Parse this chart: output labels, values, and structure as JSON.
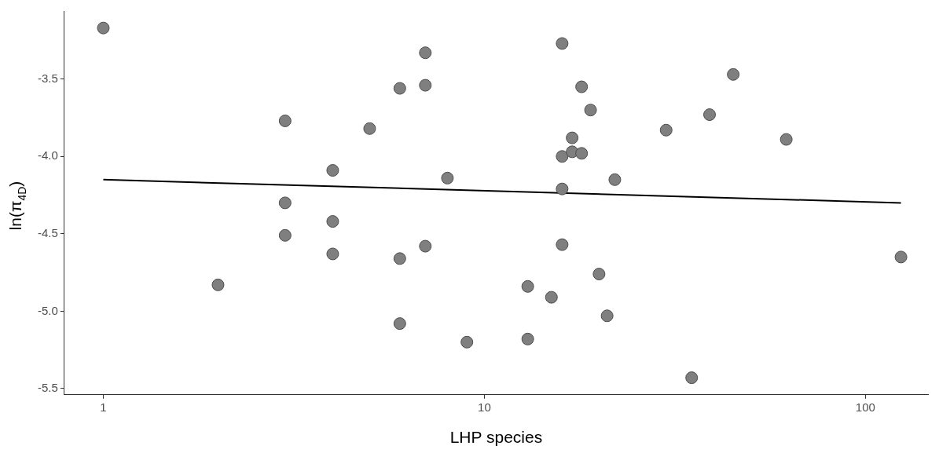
{
  "chart_data": {
    "type": "scatter",
    "xlabel": "LHP species",
    "ylabel": "ln(π$_{4D}$)",
    "log": "x",
    "grid": false,
    "legend": false,
    "marker": "circle",
    "xlim": [
      0.79,
      146
    ],
    "xticks": [
      1,
      10,
      100
    ],
    "ylim": [
      -5.54,
      -3.06
    ],
    "yticks": [
      {
        "value": -3.5,
        "label": "-3.5"
      },
      {
        "value": -4,
        "label": "-4.0"
      },
      {
        "value": -4.5,
        "label": "-4.5"
      },
      {
        "value": -5,
        "label": "-5.0"
      },
      {
        "value": -5.5,
        "label": "-5.5"
      }
    ],
    "series": [
      {
        "color": "#7f7f7f",
        "x": [
          1,
          2,
          3,
          3,
          3,
          4,
          4,
          4,
          5,
          6,
          6,
          6,
          7,
          7,
          7,
          8,
          9,
          13,
          13,
          15,
          16,
          16,
          16,
          16,
          17,
          17,
          18,
          18,
          19,
          20,
          21,
          22,
          30,
          35,
          39,
          45,
          62,
          124
        ],
        "values": [
          -3.17,
          -4.83,
          -3.77,
          -4.3,
          -4.51,
          -4.09,
          -4.42,
          -4.63,
          -3.82,
          -3.56,
          -4.66,
          -5.08,
          -3.33,
          -3.54,
          -4.58,
          -4.14,
          -5.2,
          -4.84,
          -5.18,
          -4.91,
          -3.27,
          -4.0,
          -4.21,
          -4.57,
          -3.88,
          -3.97,
          -3.55,
          -3.98,
          -3.7,
          -4.76,
          -5.03,
          -4.15,
          -3.83,
          -5.43,
          -3.73,
          -3.47,
          -3.89,
          -4.65
        ]
      },
      {
        "type": "line",
        "color": "#000000",
        "marker": "none",
        "x": [
          1,
          124
        ],
        "values": [
          -4.15,
          -4.3
        ]
      }
    ]
  }
}
